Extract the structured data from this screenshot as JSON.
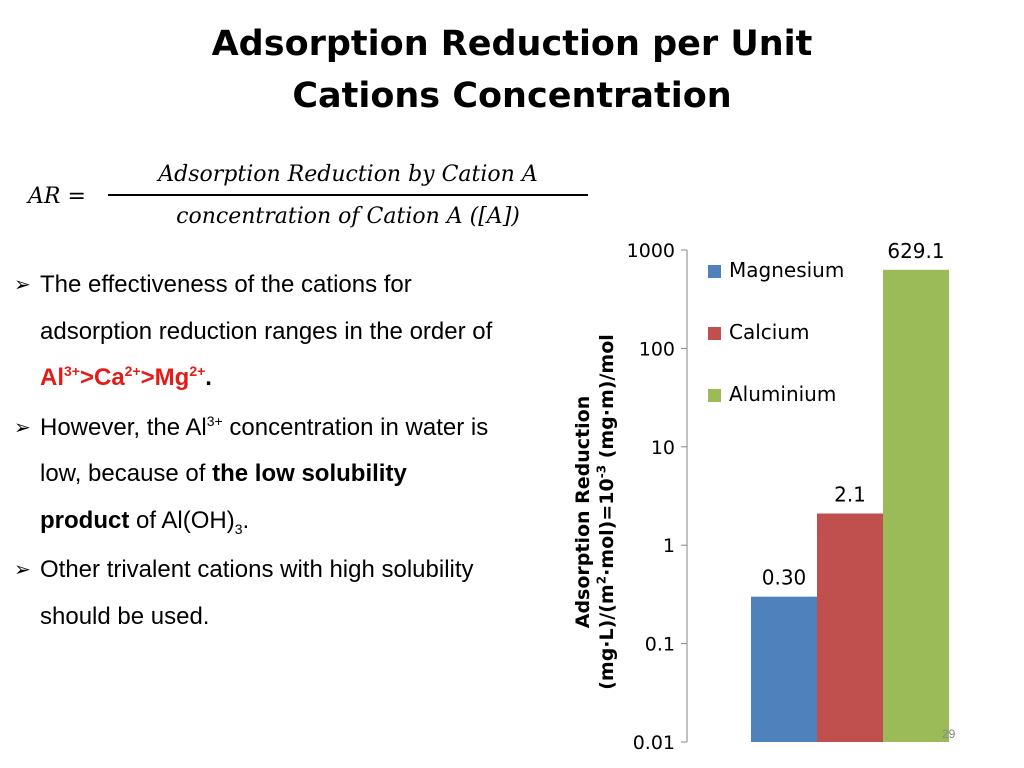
{
  "title": {
    "line1": "Adsorption Reduction per Unit",
    "line2": "Cations Concentration"
  },
  "formula": {
    "lhs": "AR =",
    "numerator": "Adsorption Reduction by Cation A",
    "denominator": "concentration of Cation A ([A])"
  },
  "bullets": {
    "b1": {
      "text": "The effectiveness of the cations for adsorption reduction ranges in the order of ",
      "al": "Al",
      "al_sup": "3+",
      "gt1": ">Ca",
      "ca_sup": "2+",
      "gt2": ">Mg",
      "mg_sup": "2+",
      "end": "."
    },
    "b2": {
      "t1": "However, the Al",
      "sup": "3+",
      "t2": " concentration in water is low, because of ",
      "bold": "the low solubility product",
      "t3": " of Al(OH)",
      "sub": "3",
      "t4": "."
    },
    "b3": {
      "text": "Other trivalent cations with high solubility should be used."
    }
  },
  "chart_data": {
    "type": "bar",
    "categories": [
      "Magnesium",
      "Calcium",
      "Aluminium"
    ],
    "values": [
      0.3,
      2.1,
      629.1
    ],
    "data_labels": [
      "0.30",
      "2.1",
      "629.1"
    ],
    "colors": [
      "#4f81bd",
      "#c0504d",
      "#9bbb59"
    ],
    "yscale": "log",
    "ylim": [
      0.01,
      1000
    ],
    "yticks": [
      "1000",
      "100",
      "10",
      "1",
      "0.1",
      "0.01"
    ],
    "ylabel": {
      "line1": "Adsorption Reduction",
      "line2a": "(mg·L)/(m",
      "sup1": "2",
      "line2b": "·mol)=10",
      "sup2": "-3",
      "line2c": " (mg·m)/mol"
    },
    "legend": {
      "position": "top-right",
      "entries": [
        "Magnesium",
        "Calcium",
        "Aluminium"
      ]
    },
    "grid": false
  },
  "page_number": "29"
}
